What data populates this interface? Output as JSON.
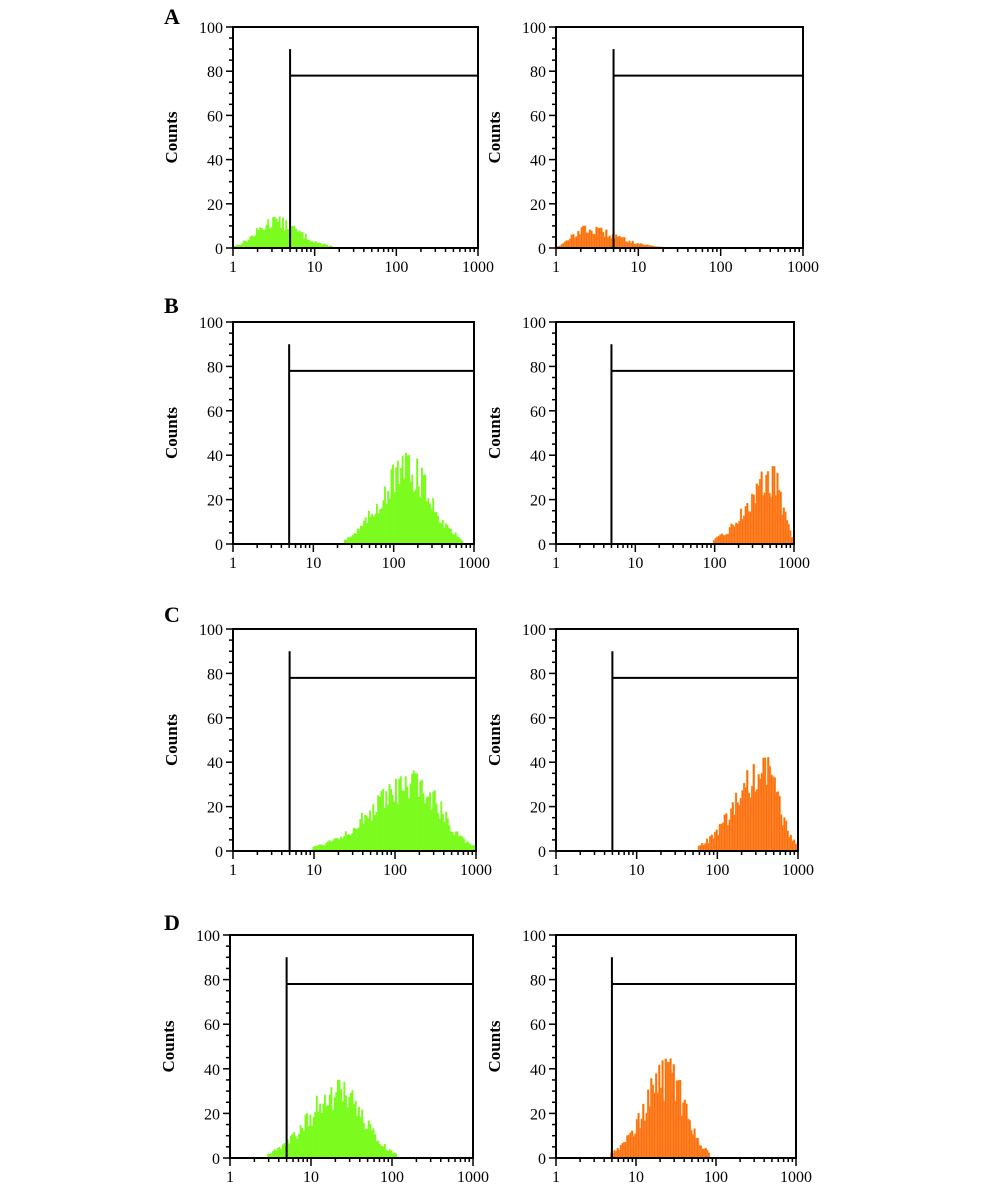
{
  "colors": {
    "green": "#7CFC1E",
    "orange": "#FF6A1A",
    "orange_edge": "#F5A623",
    "axis": "#000000"
  },
  "chart_data": [
    {
      "type": "histogram",
      "panel": "A",
      "channel": "green",
      "color": "#7CFC1E",
      "xlabel": "",
      "ylabel": "Counts",
      "xscale": "log",
      "xlim": [
        1,
        1000
      ],
      "ylim": [
        0,
        100
      ],
      "xticks": [
        "1",
        "10",
        "100",
        "1000"
      ],
      "yticks": [
        "0",
        "20",
        "40",
        "60",
        "80",
        "100"
      ],
      "gate": {
        "x_start": 5,
        "x_end": 1000,
        "marker_top": 90,
        "bar_level": 78
      },
      "distribution": {
        "peak_x": 3.2,
        "peak_count": 14,
        "x_min": 1,
        "x_max": 16
      }
    },
    {
      "type": "histogram",
      "panel": "A",
      "channel": "orange",
      "color": "#FF6A1A",
      "xlabel": "",
      "ylabel": "Counts",
      "xscale": "log",
      "xlim": [
        1,
        1000
      ],
      "ylim": [
        0,
        100
      ],
      "xticks": [
        "1",
        "10",
        "100",
        "1000"
      ],
      "yticks": [
        "0",
        "20",
        "40",
        "60",
        "80",
        "100"
      ],
      "gate": {
        "x_start": 5,
        "x_end": 1000,
        "marker_top": 90,
        "bar_level": 78
      },
      "distribution": {
        "peak_x": 2.2,
        "peak_count": 10,
        "x_min": 1,
        "x_max": 18
      }
    },
    {
      "type": "histogram",
      "panel": "B",
      "channel": "green",
      "color": "#7CFC1E",
      "xlabel": "",
      "ylabel": "Counts",
      "xscale": "log",
      "xlim": [
        1,
        1000
      ],
      "ylim": [
        0,
        100
      ],
      "xticks": [
        "1",
        "10",
        "100",
        "1000"
      ],
      "yticks": [
        "0",
        "20",
        "40",
        "60",
        "80",
        "100"
      ],
      "gate": {
        "x_start": 5,
        "x_end": 1000,
        "marker_top": 90,
        "bar_level": 78
      },
      "distribution": {
        "peak_x": 150,
        "peak_count": 40,
        "x_min": 25,
        "x_max": 700
      }
    },
    {
      "type": "histogram",
      "panel": "B",
      "channel": "orange",
      "color": "#FF6A1A",
      "xlabel": "",
      "ylabel": "Counts",
      "xscale": "log",
      "xlim": [
        1,
        1000
      ],
      "ylim": [
        0,
        100
      ],
      "xticks": [
        "1",
        "10",
        "100",
        "1000"
      ],
      "yticks": [
        "0",
        "20",
        "40",
        "60",
        "80",
        "100"
      ],
      "gate": {
        "x_start": 5,
        "x_end": 1000,
        "marker_top": 90,
        "bar_level": 78
      },
      "distribution": {
        "peak_x": 550,
        "peak_count": 35,
        "x_min": 100,
        "x_max": 1000
      }
    },
    {
      "type": "histogram",
      "panel": "C",
      "channel": "green",
      "color": "#7CFC1E",
      "xlabel": "",
      "ylabel": "Counts",
      "xscale": "log",
      "xlim": [
        1,
        1000
      ],
      "ylim": [
        0,
        100
      ],
      "xticks": [
        "1",
        "10",
        "100",
        "1000"
      ],
      "yticks": [
        "0",
        "20",
        "40",
        "60",
        "80",
        "100"
      ],
      "gate": {
        "x_start": 5,
        "x_end": 1000,
        "marker_top": 90,
        "bar_level": 78
      },
      "distribution": {
        "peak_x": 180,
        "peak_count": 35,
        "x_min": 10,
        "x_max": 1000
      }
    },
    {
      "type": "histogram",
      "panel": "C",
      "channel": "orange",
      "color": "#FF6A1A",
      "xlabel": "",
      "ylabel": "Counts",
      "xscale": "log",
      "xlim": [
        1,
        1000
      ],
      "ylim": [
        0,
        100
      ],
      "xticks": [
        "1",
        "10",
        "100",
        "1000"
      ],
      "yticks": [
        "0",
        "20",
        "40",
        "60",
        "80",
        "100"
      ],
      "gate": {
        "x_start": 5,
        "x_end": 1000,
        "marker_top": 90,
        "bar_level": 78
      },
      "distribution": {
        "peak_x": 380,
        "peak_count": 42,
        "x_min": 60,
        "x_max": 1000
      }
    },
    {
      "type": "histogram",
      "panel": "D",
      "channel": "green",
      "color": "#7CFC1E",
      "xlabel": "",
      "ylabel": "Counts",
      "xscale": "log",
      "xlim": [
        1,
        1000
      ],
      "ylim": [
        0,
        100
      ],
      "xticks": [
        "1",
        "10",
        "100",
        "1000"
      ],
      "yticks": [
        "0",
        "20",
        "40",
        "60",
        "80",
        "100"
      ],
      "gate": {
        "x_start": 5,
        "x_end": 1000,
        "marker_top": 90,
        "bar_level": 78
      },
      "distribution": {
        "peak_x": 22,
        "peak_count": 35,
        "x_min": 3,
        "x_max": 110
      }
    },
    {
      "type": "histogram",
      "panel": "D",
      "channel": "orange",
      "color": "#FF6A1A",
      "xlabel": "",
      "ylabel": "Counts",
      "xscale": "log",
      "xlim": [
        1,
        1000
      ],
      "ylim": [
        0,
        100
      ],
      "xticks": [
        "1",
        "10",
        "100",
        "1000"
      ],
      "yticks": [
        "0",
        "20",
        "40",
        "60",
        "80",
        "100"
      ],
      "gate": {
        "x_start": 5,
        "x_end": 1000,
        "marker_top": 90,
        "bar_level": 78
      },
      "distribution": {
        "peak_x": 25,
        "peak_count": 43,
        "x_min": 5,
        "x_max": 80
      }
    }
  ],
  "panel_labels": [
    "A",
    "B",
    "C",
    "D"
  ]
}
